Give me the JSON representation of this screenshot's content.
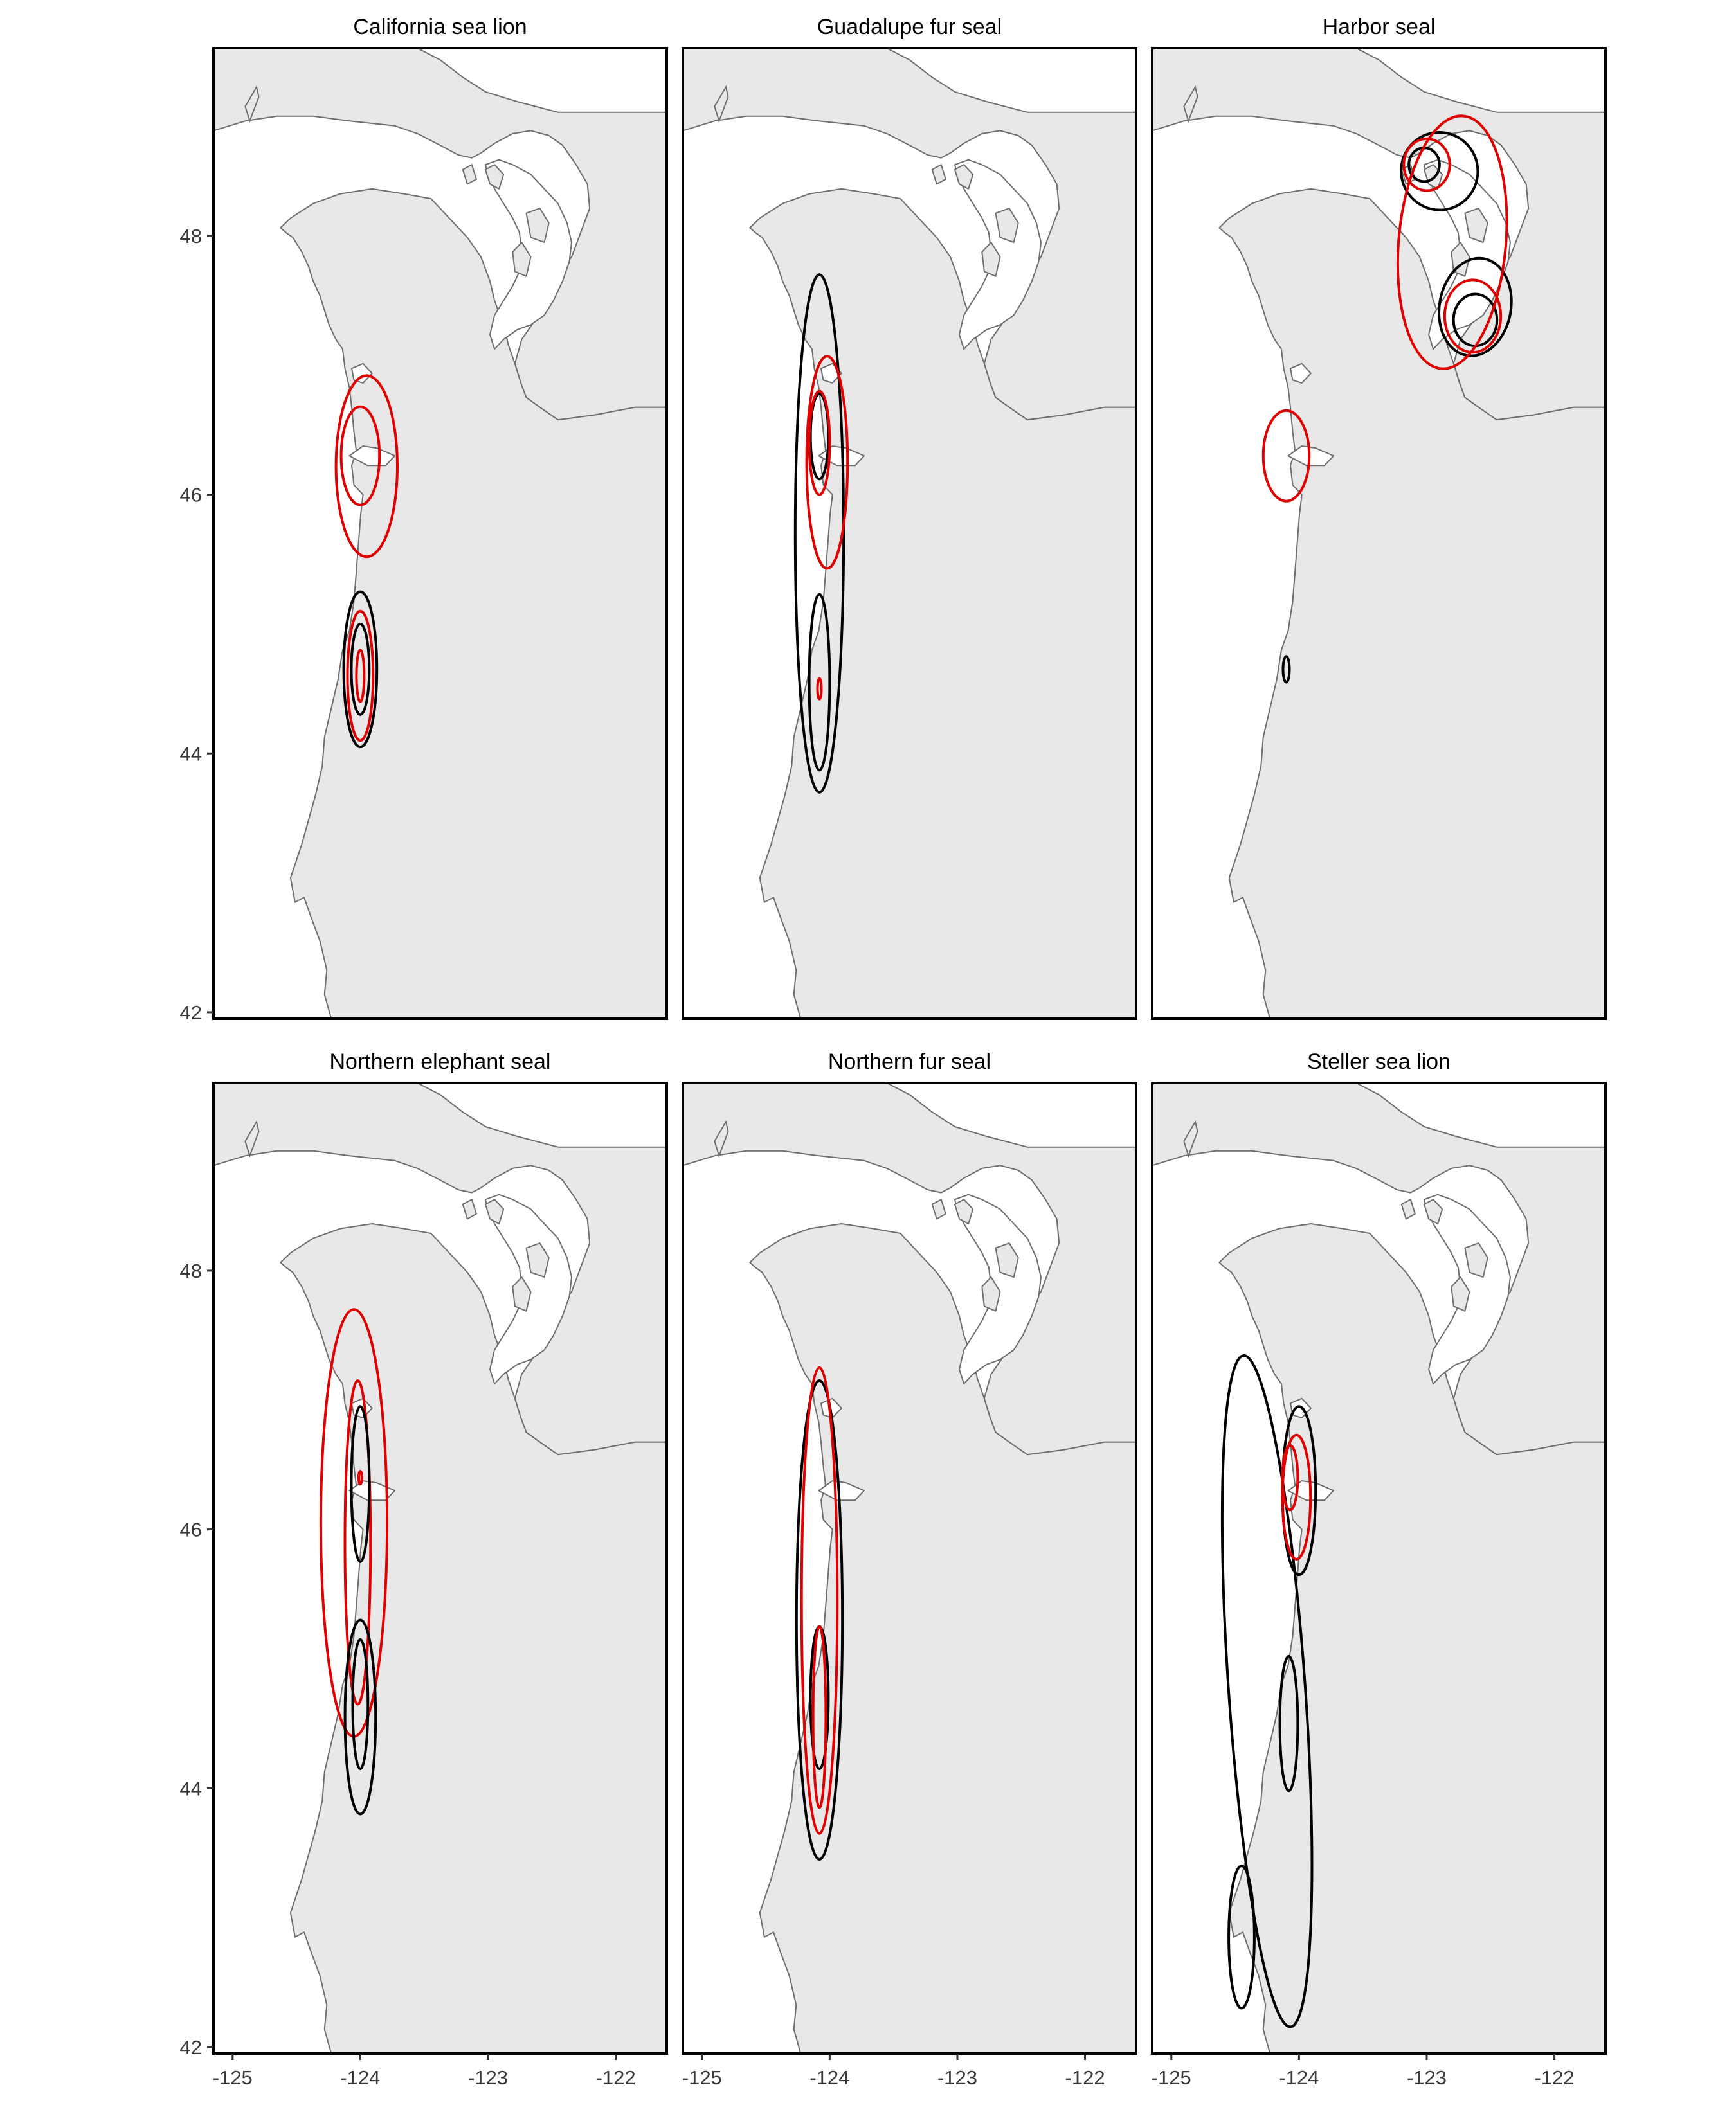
{
  "figure": {
    "x_axis": {
      "ticks": [
        -125,
        -124,
        -123,
        -122
      ],
      "tick_labels": [
        "-125",
        "-124",
        "-123",
        "-122"
      ]
    },
    "y_axis": {
      "ticks": [
        42,
        44,
        46,
        48
      ],
      "tick_labels": [
        "42",
        "44",
        "46",
        "48"
      ]
    },
    "colors": {
      "land": "#e8e8e8",
      "water": "#ffffff",
      "coast": "#6e6e6e",
      "contour_black": "#000000",
      "contour_red": "#e00000"
    }
  },
  "panels": [
    {
      "title": "California sea lion"
    },
    {
      "title": "Guadalupe fur seal"
    },
    {
      "title": "Harbor seal"
    },
    {
      "title": "Northern elephant seal"
    },
    {
      "title": "Northern fur seal"
    },
    {
      "title": "Steller sea lion"
    }
  ],
  "chart_data": {
    "type": "contour-map",
    "lon_range": [
      -125.15,
      -121.6
    ],
    "lat_range": [
      41.95,
      49.45
    ],
    "panels": [
      {
        "title": "California sea lion",
        "contours": [
          {
            "color": "black",
            "lon": -124.0,
            "lat": 44.65,
            "rx": 0.13,
            "ry": 0.6
          },
          {
            "color": "black",
            "lon": -124.0,
            "lat": 44.65,
            "rx": 0.07,
            "ry": 0.35
          },
          {
            "color": "red",
            "lon": -124.0,
            "lat": 44.6,
            "rx": 0.1,
            "ry": 0.5
          },
          {
            "color": "red",
            "lon": -124.0,
            "lat": 44.6,
            "rx": 0.03,
            "ry": 0.2
          },
          {
            "color": "red",
            "lon": -123.95,
            "lat": 46.22,
            "rx": 0.24,
            "ry": 0.7
          },
          {
            "color": "red",
            "lon": -124.0,
            "lat": 46.3,
            "rx": 0.15,
            "ry": 0.38
          }
        ]
      },
      {
        "title": "Guadalupe fur seal",
        "contours": [
          {
            "color": "black",
            "lon": -124.08,
            "lat": 45.7,
            "rx": 0.19,
            "ry": 2.0
          },
          {
            "color": "black",
            "lon": -124.08,
            "lat": 46.45,
            "rx": 0.07,
            "ry": 0.33
          },
          {
            "color": "black",
            "lon": -124.08,
            "lat": 44.55,
            "rx": 0.08,
            "ry": 0.68
          },
          {
            "color": "red",
            "lon": -124.02,
            "lat": 46.25,
            "rx": 0.16,
            "ry": 0.82
          },
          {
            "color": "red",
            "lon": -124.08,
            "lat": 46.4,
            "rx": 0.08,
            "ry": 0.4
          },
          {
            "color": "red",
            "lon": -124.08,
            "lat": 44.5,
            "rx": 0.015,
            "ry": 0.08
          }
        ]
      },
      {
        "title": "Harbor seal",
        "contours": [
          {
            "color": "black",
            "lon": -122.9,
            "lat": 48.5,
            "rx": 0.3,
            "ry": 0.3,
            "rot": -15
          },
          {
            "color": "black",
            "lon": -123.02,
            "lat": 48.55,
            "rx": 0.12,
            "ry": 0.13
          },
          {
            "color": "black",
            "lon": -122.62,
            "lat": 47.45,
            "rx": 0.28,
            "ry": 0.38,
            "rot": 10
          },
          {
            "color": "black",
            "lon": -122.62,
            "lat": 47.35,
            "rx": 0.17,
            "ry": 0.2
          },
          {
            "color": "red",
            "lon": -122.8,
            "lat": 47.95,
            "rx": 0.42,
            "ry": 0.98,
            "rot": 5
          },
          {
            "color": "red",
            "lon": -123.0,
            "lat": 48.55,
            "rx": 0.18,
            "ry": 0.2
          },
          {
            "color": "red",
            "lon": -122.64,
            "lat": 47.38,
            "rx": 0.22,
            "ry": 0.28
          },
          {
            "color": "red",
            "lon": -124.1,
            "lat": 46.3,
            "rx": 0.18,
            "ry": 0.35
          },
          {
            "color": "black",
            "lon": -124.1,
            "lat": 44.65,
            "rx": 0.025,
            "ry": 0.1
          }
        ]
      },
      {
        "title": "Northern elephant seal",
        "contours": [
          {
            "color": "red",
            "lon": -124.05,
            "lat": 46.05,
            "rx": 0.26,
            "ry": 1.65
          },
          {
            "color": "red",
            "lon": -124.02,
            "lat": 45.9,
            "rx": 0.1,
            "ry": 1.25
          },
          {
            "color": "black",
            "lon": -124.0,
            "lat": 46.35,
            "rx": 0.07,
            "ry": 0.6
          },
          {
            "color": "black",
            "lon": -124.0,
            "lat": 44.55,
            "rx": 0.12,
            "ry": 0.75
          },
          {
            "color": "black",
            "lon": -124.0,
            "lat": 44.65,
            "rx": 0.06,
            "ry": 0.5
          },
          {
            "color": "red",
            "lon": -124.0,
            "lat": 46.4,
            "rx": 0.012,
            "ry": 0.05
          }
        ]
      },
      {
        "title": "Northern fur seal",
        "contours": [
          {
            "color": "black",
            "lon": -124.08,
            "lat": 45.3,
            "rx": 0.18,
            "ry": 1.85
          },
          {
            "color": "black",
            "lon": -124.08,
            "lat": 44.7,
            "rx": 0.07,
            "ry": 0.55
          },
          {
            "color": "red",
            "lon": -124.08,
            "lat": 45.45,
            "rx": 0.14,
            "ry": 1.8
          },
          {
            "color": "red",
            "lon": -124.08,
            "lat": 44.55,
            "rx": 0.05,
            "ry": 0.7
          }
        ]
      },
      {
        "title": "Steller sea lion",
        "contours": [
          {
            "color": "black",
            "lon": -124.25,
            "lat": 44.75,
            "rx": 0.3,
            "ry": 2.6,
            "rot": -4
          },
          {
            "color": "black",
            "lon": -124.0,
            "lat": 46.3,
            "rx": 0.13,
            "ry": 0.65
          },
          {
            "color": "black",
            "lon": -124.08,
            "lat": 44.5,
            "rx": 0.07,
            "ry": 0.52
          },
          {
            "color": "black",
            "lon": -124.45,
            "lat": 42.85,
            "rx": 0.1,
            "ry": 0.55
          },
          {
            "color": "red",
            "lon": -124.02,
            "lat": 46.25,
            "rx": 0.11,
            "ry": 0.48
          },
          {
            "color": "red",
            "lon": -124.07,
            "lat": 46.4,
            "rx": 0.06,
            "ry": 0.25
          }
        ]
      }
    ]
  }
}
